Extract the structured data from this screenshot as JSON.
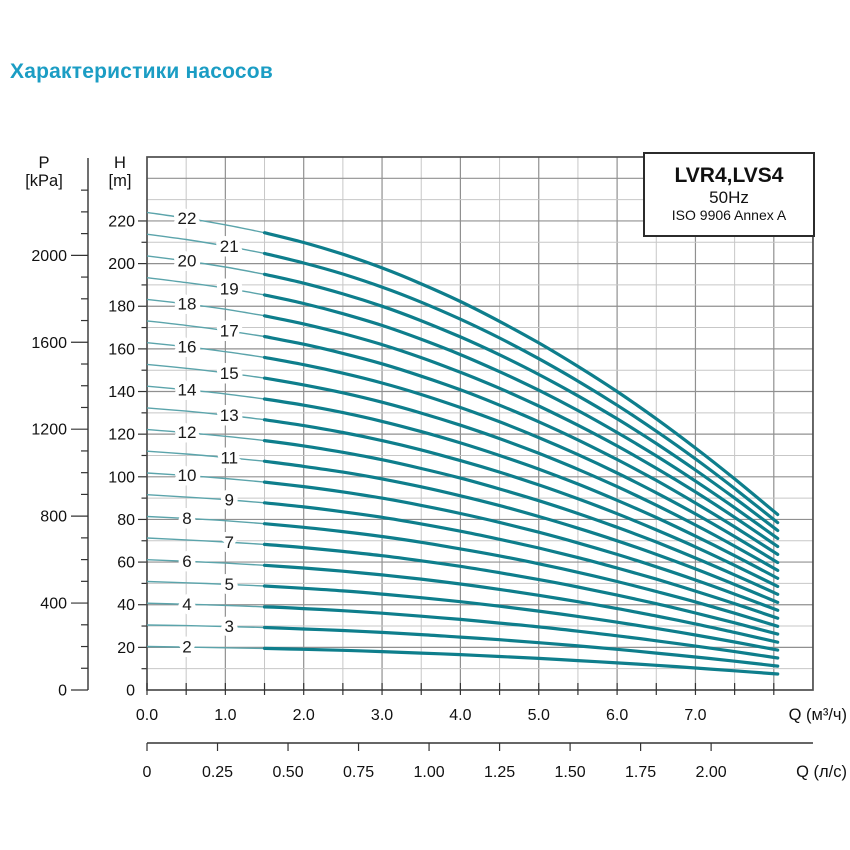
{
  "title": "Характеристики насосов",
  "title_color": "#1b9dc4",
  "info_box": {
    "model": "LVR4,LVS4",
    "frequency": "50Hz",
    "standard": "ISO 9906 Annex A"
  },
  "chart_data": {
    "type": "line",
    "title": "Характеристики насосов",
    "model": "LVR4,LVS4",
    "frequency": "50Hz",
    "standard": "ISO 9906 Annex A",
    "x_axis_m3h": {
      "label": "Q (м³/ч)",
      "tick_values": [
        0,
        1,
        2,
        3,
        4,
        5,
        6,
        7
      ],
      "tick_labels": [
        "0.0",
        "1.0",
        "2.0",
        "3.0",
        "4.0",
        "5.0",
        "6.0",
        "7.0"
      ],
      "minor_step": 0.5,
      "range": [
        0,
        8.5
      ]
    },
    "x_axis_ls": {
      "label": "Q (л/с)",
      "tick_values": [
        0,
        0.25,
        0.5,
        0.75,
        1,
        1.25,
        1.5,
        1.75,
        2
      ],
      "tick_labels": [
        "0",
        "0.25",
        "0.50",
        "0.75",
        "1.00",
        "1.25",
        "1.50",
        "1.75",
        "2.00"
      ],
      "m3h_per_ls": 3.6
    },
    "y_axis_head": {
      "label_letter": "H",
      "label_unit": "[m]",
      "tick_values": [
        0,
        20,
        40,
        60,
        80,
        100,
        120,
        140,
        160,
        180,
        200,
        220
      ],
      "minor_step": 10,
      "range": [
        0,
        250
      ]
    },
    "y_axis_pressure": {
      "label_letter": "P",
      "label_unit": "[kPa]",
      "tick_values": [
        0,
        400,
        800,
        1200,
        1600,
        2000
      ],
      "minor_step": 100,
      "minor_max": 2300,
      "kpa_per_m": 9.81
    },
    "grid": {
      "vertical_step": 0.5,
      "horizontal_step": 10
    },
    "min_continuous_flow_q": 1.45,
    "q_values": [
      0,
      0.5,
      1,
      1.5,
      2,
      2.5,
      3,
      3.5,
      4,
      4.5,
      5,
      5.5,
      6,
      6.5,
      7,
      7.5,
      8.05
    ],
    "per_stage_head_m": [
      10.18,
      10.06,
      9.92,
      9.75,
      9.54,
      9.29,
      9.0,
      8.66,
      8.28,
      7.86,
      7.4,
      6.9,
      6.36,
      5.78,
      5.16,
      4.5,
      3.74
    ],
    "curves": [
      {
        "stages": 2,
        "label": "2",
        "label_q": 0.51,
        "heads_m": [
          20.4,
          20.1,
          19.8,
          19.5,
          19.1,
          18.6,
          18.0,
          17.3,
          16.6,
          15.7,
          14.8,
          13.8,
          12.7,
          11.6,
          10.3,
          9.0,
          7.5
        ]
      },
      {
        "stages": 3,
        "label": "3",
        "label_q": 1.05,
        "heads_m": [
          30.5,
          30.2,
          29.8,
          29.3,
          28.6,
          27.9,
          27.0,
          26.0,
          24.8,
          23.6,
          22.2,
          20.7,
          19.1,
          17.3,
          15.5,
          13.5,
          11.2
        ]
      },
      {
        "stages": 4,
        "label": "4",
        "label_q": 0.51,
        "heads_m": [
          40.7,
          40.2,
          39.7,
          39.0,
          38.2,
          37.2,
          36.0,
          34.6,
          33.1,
          31.4,
          29.6,
          27.6,
          25.4,
          23.1,
          20.6,
          18.0,
          15.0
        ]
      },
      {
        "stages": 5,
        "label": "5",
        "label_q": 1.05,
        "heads_m": [
          50.9,
          50.3,
          49.6,
          48.8,
          47.7,
          46.5,
          45.0,
          43.3,
          41.4,
          39.3,
          37.0,
          34.5,
          31.8,
          28.9,
          25.8,
          22.5,
          18.7
        ]
      },
      {
        "stages": 6,
        "label": "6",
        "label_q": 0.51,
        "heads_m": [
          61.1,
          60.4,
          59.5,
          58.5,
          57.2,
          55.7,
          54.0,
          52.0,
          49.7,
          47.2,
          44.4,
          41.4,
          38.2,
          34.7,
          31.0,
          27.0,
          22.4
        ]
      },
      {
        "stages": 7,
        "label": "7",
        "label_q": 1.05,
        "heads_m": [
          71.3,
          70.4,
          69.4,
          68.3,
          66.8,
          65.0,
          63.0,
          60.6,
          58.0,
          55.0,
          51.8,
          48.3,
          44.5,
          40.5,
          36.1,
          31.5,
          26.2
        ]
      },
      {
        "stages": 8,
        "label": "8",
        "label_q": 0.51,
        "heads_m": [
          81.4,
          80.5,
          79.4,
          78.0,
          76.3,
          74.3,
          72.0,
          69.3,
          66.2,
          62.9,
          59.2,
          55.2,
          50.9,
          46.2,
          41.3,
          36.0,
          29.9
        ]
      },
      {
        "stages": 9,
        "label": "9",
        "label_q": 1.05,
        "heads_m": [
          91.6,
          90.5,
          89.3,
          87.8,
          85.9,
          83.6,
          81.0,
          77.9,
          74.5,
          70.7,
          66.6,
          62.1,
          57.2,
          52.0,
          46.4,
          40.5,
          33.7
        ]
      },
      {
        "stages": 10,
        "label": "10",
        "label_q": 0.51,
        "heads_m": [
          101.8,
          100.6,
          99.2,
          97.5,
          95.4,
          92.9,
          90.0,
          86.6,
          82.8,
          78.6,
          74.0,
          69.0,
          63.6,
          57.8,
          51.6,
          45.0,
          37.4
        ]
      },
      {
        "stages": 11,
        "label": "11",
        "label_q": 1.05,
        "heads_m": [
          112.0,
          110.7,
          109.1,
          107.3,
          104.9,
          102.2,
          99.0,
          95.3,
          91.1,
          86.5,
          81.4,
          75.9,
          70.0,
          63.6,
          56.8,
          49.5,
          41.1
        ]
      },
      {
        "stages": 12,
        "label": "12",
        "label_q": 0.51,
        "heads_m": [
          122.2,
          120.7,
          119.0,
          117.0,
          114.5,
          111.5,
          108.0,
          103.9,
          99.4,
          94.3,
          88.8,
          82.8,
          76.3,
          69.4,
          61.9,
          54.0,
          44.9
        ]
      },
      {
        "stages": 13,
        "label": "13",
        "label_q": 1.05,
        "heads_m": [
          132.3,
          130.8,
          129.0,
          126.8,
          124.0,
          120.8,
          117.0,
          112.6,
          107.6,
          102.2,
          96.2,
          89.7,
          82.7,
          75.1,
          67.1,
          58.5,
          48.6
        ]
      },
      {
        "stages": 14,
        "label": "14",
        "label_q": 0.51,
        "heads_m": [
          142.5,
          140.8,
          138.9,
          136.5,
          133.6,
          130.1,
          126.0,
          121.2,
          115.9,
          110.0,
          103.6,
          96.6,
          89.0,
          80.9,
          72.2,
          63.0,
          52.4
        ]
      },
      {
        "stages": 15,
        "label": "15",
        "label_q": 1.05,
        "heads_m": [
          152.7,
          150.9,
          148.8,
          146.3,
          143.1,
          139.4,
          135.0,
          129.9,
          124.2,
          117.9,
          111.0,
          103.5,
          95.4,
          86.7,
          77.4,
          67.5,
          56.1
        ]
      },
      {
        "stages": 16,
        "label": "16",
        "label_q": 0.51,
        "heads_m": [
          162.9,
          161.0,
          158.7,
          156.0,
          152.6,
          148.6,
          144.0,
          138.6,
          132.5,
          125.8,
          118.4,
          110.4,
          101.8,
          92.5,
          82.6,
          72.0,
          59.8
        ]
      },
      {
        "stages": 17,
        "label": "17",
        "label_q": 1.05,
        "heads_m": [
          173.1,
          171.0,
          168.6,
          165.8,
          162.2,
          157.9,
          153.0,
          147.2,
          140.8,
          133.6,
          125.8,
          117.3,
          108.1,
          98.3,
          87.7,
          76.5,
          63.6
        ]
      },
      {
        "stages": 18,
        "label": "18",
        "label_q": 0.51,
        "heads_m": [
          183.2,
          181.1,
          178.6,
          175.5,
          171.7,
          167.2,
          162.0,
          155.9,
          149.0,
          141.5,
          133.2,
          124.2,
          114.5,
          104.0,
          92.9,
          81.0,
          67.3
        ]
      },
      {
        "stages": 19,
        "label": "19",
        "label_q": 1.05,
        "heads_m": [
          193.4,
          191.1,
          188.5,
          185.3,
          181.3,
          176.5,
          171.0,
          164.5,
          157.3,
          149.3,
          140.6,
          131.1,
          120.8,
          109.8,
          98.0,
          85.5,
          71.1
        ]
      },
      {
        "stages": 20,
        "label": "20",
        "label_q": 0.51,
        "heads_m": [
          203.6,
          201.2,
          198.4,
          195.0,
          190.8,
          185.8,
          180.0,
          173.2,
          165.6,
          157.2,
          148.0,
          138.0,
          127.2,
          115.6,
          103.2,
          90.0,
          74.8
        ]
      },
      {
        "stages": 21,
        "label": "21",
        "label_q": 1.05,
        "heads_m": [
          213.8,
          211.3,
          208.3,
          204.8,
          200.3,
          195.1,
          189.0,
          181.9,
          173.9,
          165.1,
          155.4,
          144.9,
          133.6,
          121.4,
          108.4,
          94.5,
          78.5
        ]
      },
      {
        "stages": 22,
        "label": "22",
        "label_q": 0.51,
        "heads_m": [
          224.0,
          221.3,
          218.2,
          214.5,
          209.9,
          204.4,
          198.0,
          190.5,
          182.2,
          172.9,
          162.8,
          151.8,
          140.0,
          127.2,
          113.5,
          99.0,
          82.3
        ]
      }
    ],
    "colors": {
      "curve_main": "#0e7e8c",
      "curve_light": "#5ba4ab",
      "grid_minor": "#c7c7c7",
      "grid_major": "#909090",
      "frame": "#4d4d4d",
      "axis_text": "#111111",
      "curve_label": "#1a1a1a"
    },
    "legend_position": "none",
    "grid_on": true
  }
}
